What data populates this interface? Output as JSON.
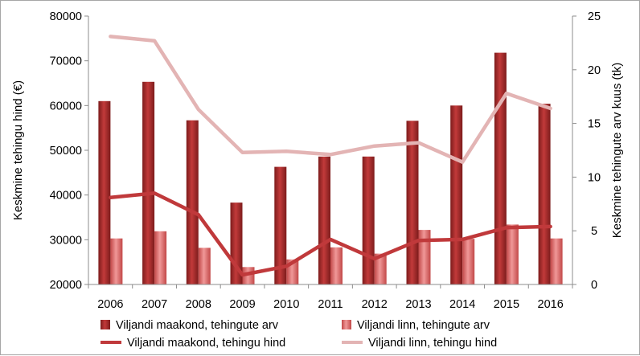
{
  "chart_data": {
    "type": "bar",
    "categories": [
      "2006",
      "2007",
      "2008",
      "2009",
      "2010",
      "2011",
      "2012",
      "2013",
      "2014",
      "2015",
      "2016"
    ],
    "ylabel": "Keskmine tehingu hind (€)",
    "y2label": "Keskmine tehingute arv kuus (tk)",
    "ylim": [
      20000,
      80000
    ],
    "y2lim": [
      0,
      25
    ],
    "yticks": [
      "20000",
      "30000",
      "40000",
      "50000",
      "60000",
      "70000",
      "80000"
    ],
    "y2ticks": [
      "0",
      "5",
      "10",
      "15",
      "20",
      "25"
    ],
    "grid": false,
    "legend_position": "bottom",
    "series": [
      {
        "name": "Viljandi maakond, tehingute arv",
        "kind": "bar",
        "axis": "y",
        "color": "#a52a2a",
        "values": [
          61000,
          65300,
          56700,
          38300,
          46300,
          48600,
          48600,
          56600,
          60000,
          71800,
          60400
        ]
      },
      {
        "name": "Viljandi linn, tehingute arv",
        "kind": "bar",
        "axis": "y",
        "color": "#d96060",
        "values": [
          30300,
          31900,
          28200,
          23900,
          25600,
          28300,
          26900,
          32200,
          30200,
          33400,
          30300
        ]
      },
      {
        "name": "Viljandi maakond, tehingu hind",
        "kind": "line",
        "axis": "y2",
        "color": "#c0393b",
        "values": [
          8.1,
          8.5,
          6.5,
          0.9,
          1.7,
          4.2,
          2.4,
          4.1,
          4.2,
          5.3,
          5.4
        ]
      },
      {
        "name": "Viljandi linn, tehingu hind",
        "kind": "line",
        "axis": "y2",
        "color": "#e3b4b4",
        "values": [
          23.1,
          22.7,
          16.3,
          12.3,
          12.4,
          12.1,
          12.9,
          13.2,
          11.4,
          17.8,
          16.4
        ]
      }
    ]
  }
}
